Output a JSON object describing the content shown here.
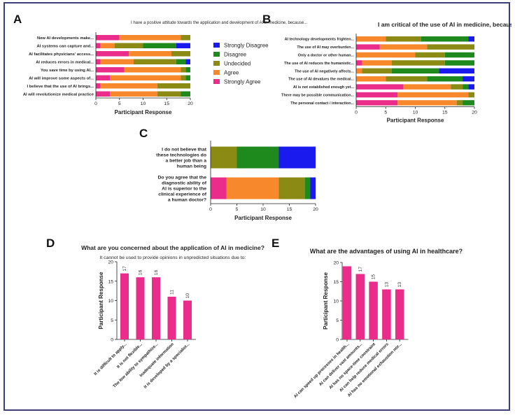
{
  "figure": {
    "panel_letters": [
      "A",
      "B",
      "C",
      "D",
      "E"
    ]
  },
  "legend": {
    "entries": [
      {
        "label": "Strongly Disagree",
        "color": "#1a1aee"
      },
      {
        "label": "Disagree",
        "color": "#1e8a1e"
      },
      {
        "label": "Undecided",
        "color": "#8a8a14"
      },
      {
        "label": "Agree",
        "color": "#f7882b"
      },
      {
        "label": "Strongly Agree",
        "color": "#ea2d8a"
      }
    ]
  },
  "chart_data": [
    {
      "panel": "A",
      "type": "bar",
      "orientation": "horizontal",
      "stacked": true,
      "title": "I have a positive attitude towards the application and development of AI in medicine, because...",
      "xlabel": "Participant Response",
      "ylabel": "",
      "xlim": [
        0,
        20
      ],
      "xticks": [
        0,
        5,
        10,
        15,
        20
      ],
      "categories": [
        "New AI developments make...",
        "AI systems can capture and...",
        "AI facilitates physicians' access...",
        "AI reduces errors in medical...",
        "You save time by using AI...",
        "AI will improve some aspects of...",
        "I believe that the use of AI brings...",
        "AI will revolutionize medical practice"
      ],
      "series": [
        {
          "name": "Strongly Agree",
          "values": [
            5,
            1,
            7,
            1,
            6,
            3,
            1,
            3
          ]
        },
        {
          "name": "Agree",
          "values": [
            13,
            3,
            9,
            7,
            12,
            15,
            12,
            10
          ]
        },
        {
          "name": "Undecided",
          "values": [
            2,
            6,
            4,
            9,
            1,
            1,
            7,
            5
          ]
        },
        {
          "name": "Disagree",
          "values": [
            0,
            7,
            0,
            2,
            1,
            1,
            0,
            2
          ]
        },
        {
          "name": "Strongly Disagree",
          "values": [
            0,
            3,
            0,
            1,
            0,
            0,
            0,
            0
          ]
        }
      ],
      "legend": "right"
    },
    {
      "panel": "B",
      "type": "bar",
      "orientation": "horizontal",
      "stacked": true,
      "title": "I am critical of the use of AI in medicine, because...",
      "xlabel": "Participant Response",
      "ylabel": "",
      "xlim": [
        0,
        20
      ],
      "xticks": [
        0,
        5,
        10,
        15,
        20
      ],
      "categories": [
        "AI technology developments frighten...",
        "The use of AI may overburden...",
        "Only a doctor or other human...",
        "The use of AI reduces the humanistic...",
        "The use of AI negatively affects...",
        "The use of AI devalues the medical...",
        "AI is not established enough yet...",
        "There may be possible communication...",
        "The personal contact / interaction..."
      ],
      "series": [
        {
          "name": "Strongly Agree",
          "values": [
            0,
            4,
            0,
            1,
            0,
            0,
            8,
            7,
            7
          ]
        },
        {
          "name": "Agree",
          "values": [
            5,
            8,
            10,
            5,
            1,
            5,
            8,
            12,
            10
          ]
        },
        {
          "name": "Undecided",
          "values": [
            6,
            8,
            5,
            9,
            5,
            7,
            2,
            1,
            1
          ]
        },
        {
          "name": "Disagree",
          "values": [
            8,
            0,
            5,
            5,
            8,
            6,
            1,
            0,
            2
          ]
        },
        {
          "name": "Strongly Disagree",
          "values": [
            1,
            0,
            0,
            0,
            6,
            2,
            1,
            0,
            0
          ]
        }
      ]
    },
    {
      "panel": "C",
      "type": "bar",
      "orientation": "horizontal",
      "stacked": true,
      "title": "",
      "xlabel": "Participant Response",
      "ylabel": "",
      "xlim": [
        0,
        20
      ],
      "xticks": [
        0,
        5,
        10,
        15,
        20
      ],
      "categories": [
        "I do not believe that these technologies do a better job than a human being",
        "Do you agree that the diagnostic ability of AI is superior to the clinical experience of a human doctor?"
      ],
      "series": [
        {
          "name": "Strongly Agree",
          "values": [
            0,
            3
          ]
        },
        {
          "name": "Agree",
          "values": [
            0,
            10
          ]
        },
        {
          "name": "Undecided",
          "values": [
            5,
            5
          ]
        },
        {
          "name": "Disagree",
          "values": [
            8,
            1
          ]
        },
        {
          "name": "Strongly Disagree",
          "values": [
            7,
            1
          ]
        }
      ]
    },
    {
      "panel": "D",
      "type": "bar",
      "orientation": "vertical",
      "title": "What are you concerned about the application of AI in medicine?",
      "subtitle": "It cannot be used to provide opinions in unpredicted situations due to:",
      "xlabel": "",
      "ylabel": "Participant Response",
      "ylim": [
        0,
        20
      ],
      "yticks": [
        0,
        5,
        10,
        15,
        20
      ],
      "categories": [
        "It is difficult to apply...",
        "It is not flexible...",
        "The low ability to sympathize...",
        "Inadequate information",
        "It is developed by a specialist..."
      ],
      "values": [
        17,
        16,
        16,
        11,
        10
      ],
      "data_labels": [
        "17",
        "16",
        "16",
        "11",
        "10"
      ],
      "color": "#ea2d8a"
    },
    {
      "panel": "E",
      "type": "bar",
      "orientation": "vertical",
      "title": "What are the advantages of using AI in healthcare?",
      "xlabel": "",
      "ylabel": "Participant Response",
      "ylim": [
        0,
        20
      ],
      "yticks": [
        0,
        5,
        10,
        15,
        20
      ],
      "categories": [
        "AI can speed up processes in health...",
        "AI can deliver vast amounts...",
        "AI has no space-time constraint",
        "AI can help reduce medical errors",
        "AI has no emotional exhaustion nor..."
      ],
      "values": [
        19,
        17,
        15,
        13,
        13
      ],
      "data_labels": [
        "",
        "17",
        "15",
        "13",
        "13"
      ],
      "color": "#ea2d8a"
    }
  ]
}
